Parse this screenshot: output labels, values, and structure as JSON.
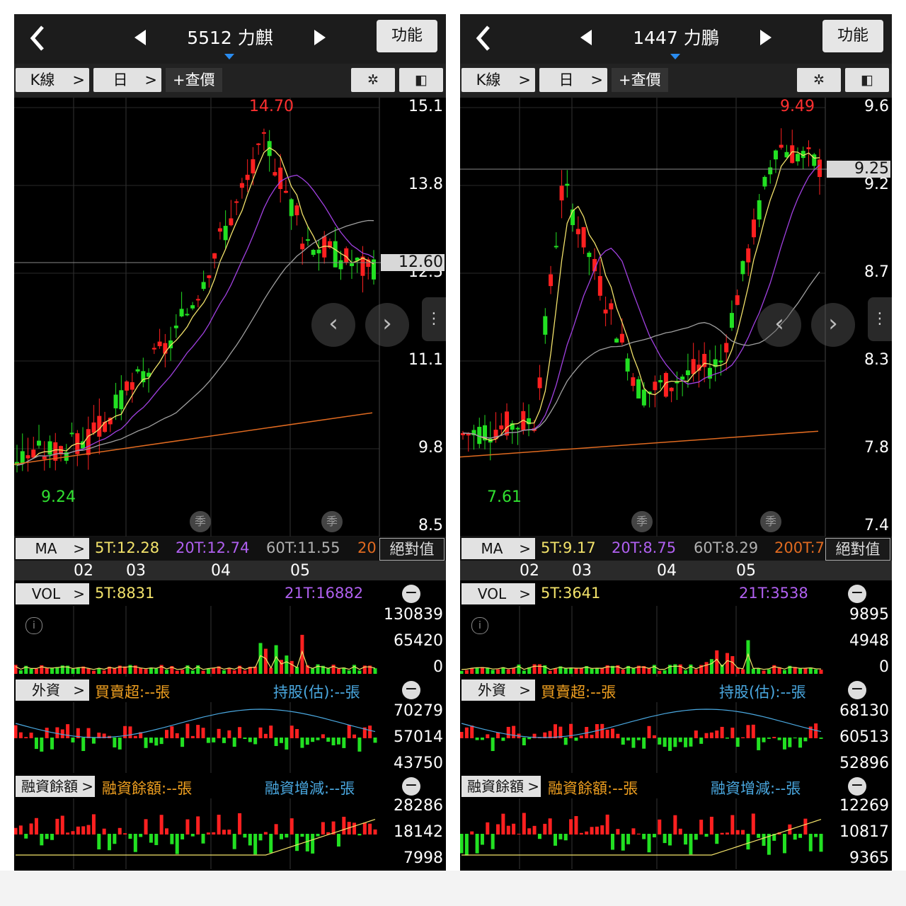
{
  "panels": [
    {
      "code_name": "5512 力麒",
      "function_label": "功能",
      "kline_label": "K線",
      "period_label": "日",
      "query_label": "+查價",
      "price_axis": [
        "15.1",
        "13.8",
        "12.5",
        "11.1",
        "9.8",
        "8.5"
      ],
      "current_price": "12.60",
      "high_label": "14.70",
      "low_label": "9.24",
      "season_label": "季",
      "ma": {
        "label": "MA",
        "t5": "5T:12.28",
        "t20": "20T:12.74",
        "t60": "60T:11.55",
        "t200": "20",
        "abs": "絕對值"
      },
      "months": [
        "02",
        "03",
        "04",
        "05"
      ],
      "vol": {
        "label": "VOL",
        "t5": "5T:8831",
        "t21": "21T:16882",
        "axis": [
          "130839",
          "65420",
          "0"
        ]
      },
      "foreign": {
        "label": "外資",
        "net": "買賣超:--張",
        "hold": "持股(估):--張",
        "axis": [
          "70279",
          "57014",
          "43750"
        ]
      },
      "margin": {
        "label": "融資餘額",
        "bal": "融資餘額:--張",
        "chg": "融資增減:--張",
        "axis": [
          "28286",
          "18142",
          "7998"
        ]
      },
      "info_icon": "i"
    },
    {
      "code_name": "1447 力鵬",
      "function_label": "功能",
      "kline_label": "K線",
      "period_label": "日",
      "query_label": "+查價",
      "price_axis": [
        "9.6",
        "9.2",
        "8.7",
        "8.3",
        "7.8",
        "7.4"
      ],
      "current_price": "9.25",
      "high_label": "9.49",
      "low_label": "7.61",
      "season_label": "季",
      "ma": {
        "label": "MA",
        "t5": "5T:9.17",
        "t20": "20T:8.75",
        "t60": "60T:8.29",
        "t200": "200T:7",
        "abs": "絕對值"
      },
      "months": [
        "02",
        "03",
        "04",
        "05"
      ],
      "vol": {
        "label": "VOL",
        "t5": "5T:3641",
        "t21": "21T:3538",
        "axis": [
          "9895",
          "4948",
          "0"
        ]
      },
      "foreign": {
        "label": "外資",
        "net": "買賣超:--張",
        "hold": "持股(估):--張",
        "axis": [
          "68130",
          "60513",
          "52896"
        ]
      },
      "margin": {
        "label": "融資餘額",
        "bal": "融資餘額:--張",
        "chg": "融資增減:--張",
        "axis": [
          "12269",
          "10817",
          "9365"
        ]
      },
      "info_icon": "i"
    }
  ],
  "colors": {
    "up": "#ff2020",
    "down": "#22e022",
    "ma5": "#f2e26a",
    "ma20": "#a040e0",
    "ma60": "#a0a0a0",
    "ma200": "#e06a20",
    "hold": "#4aa8e0"
  },
  "icons": [
    "back-arrow-icon",
    "prev-stock-icon",
    "next-stock-icon",
    "gear-icon",
    "rotate-screen-icon",
    "info-icon",
    "more-dots-icon",
    "chevron-left-icon",
    "chevron-right-icon"
  ]
}
